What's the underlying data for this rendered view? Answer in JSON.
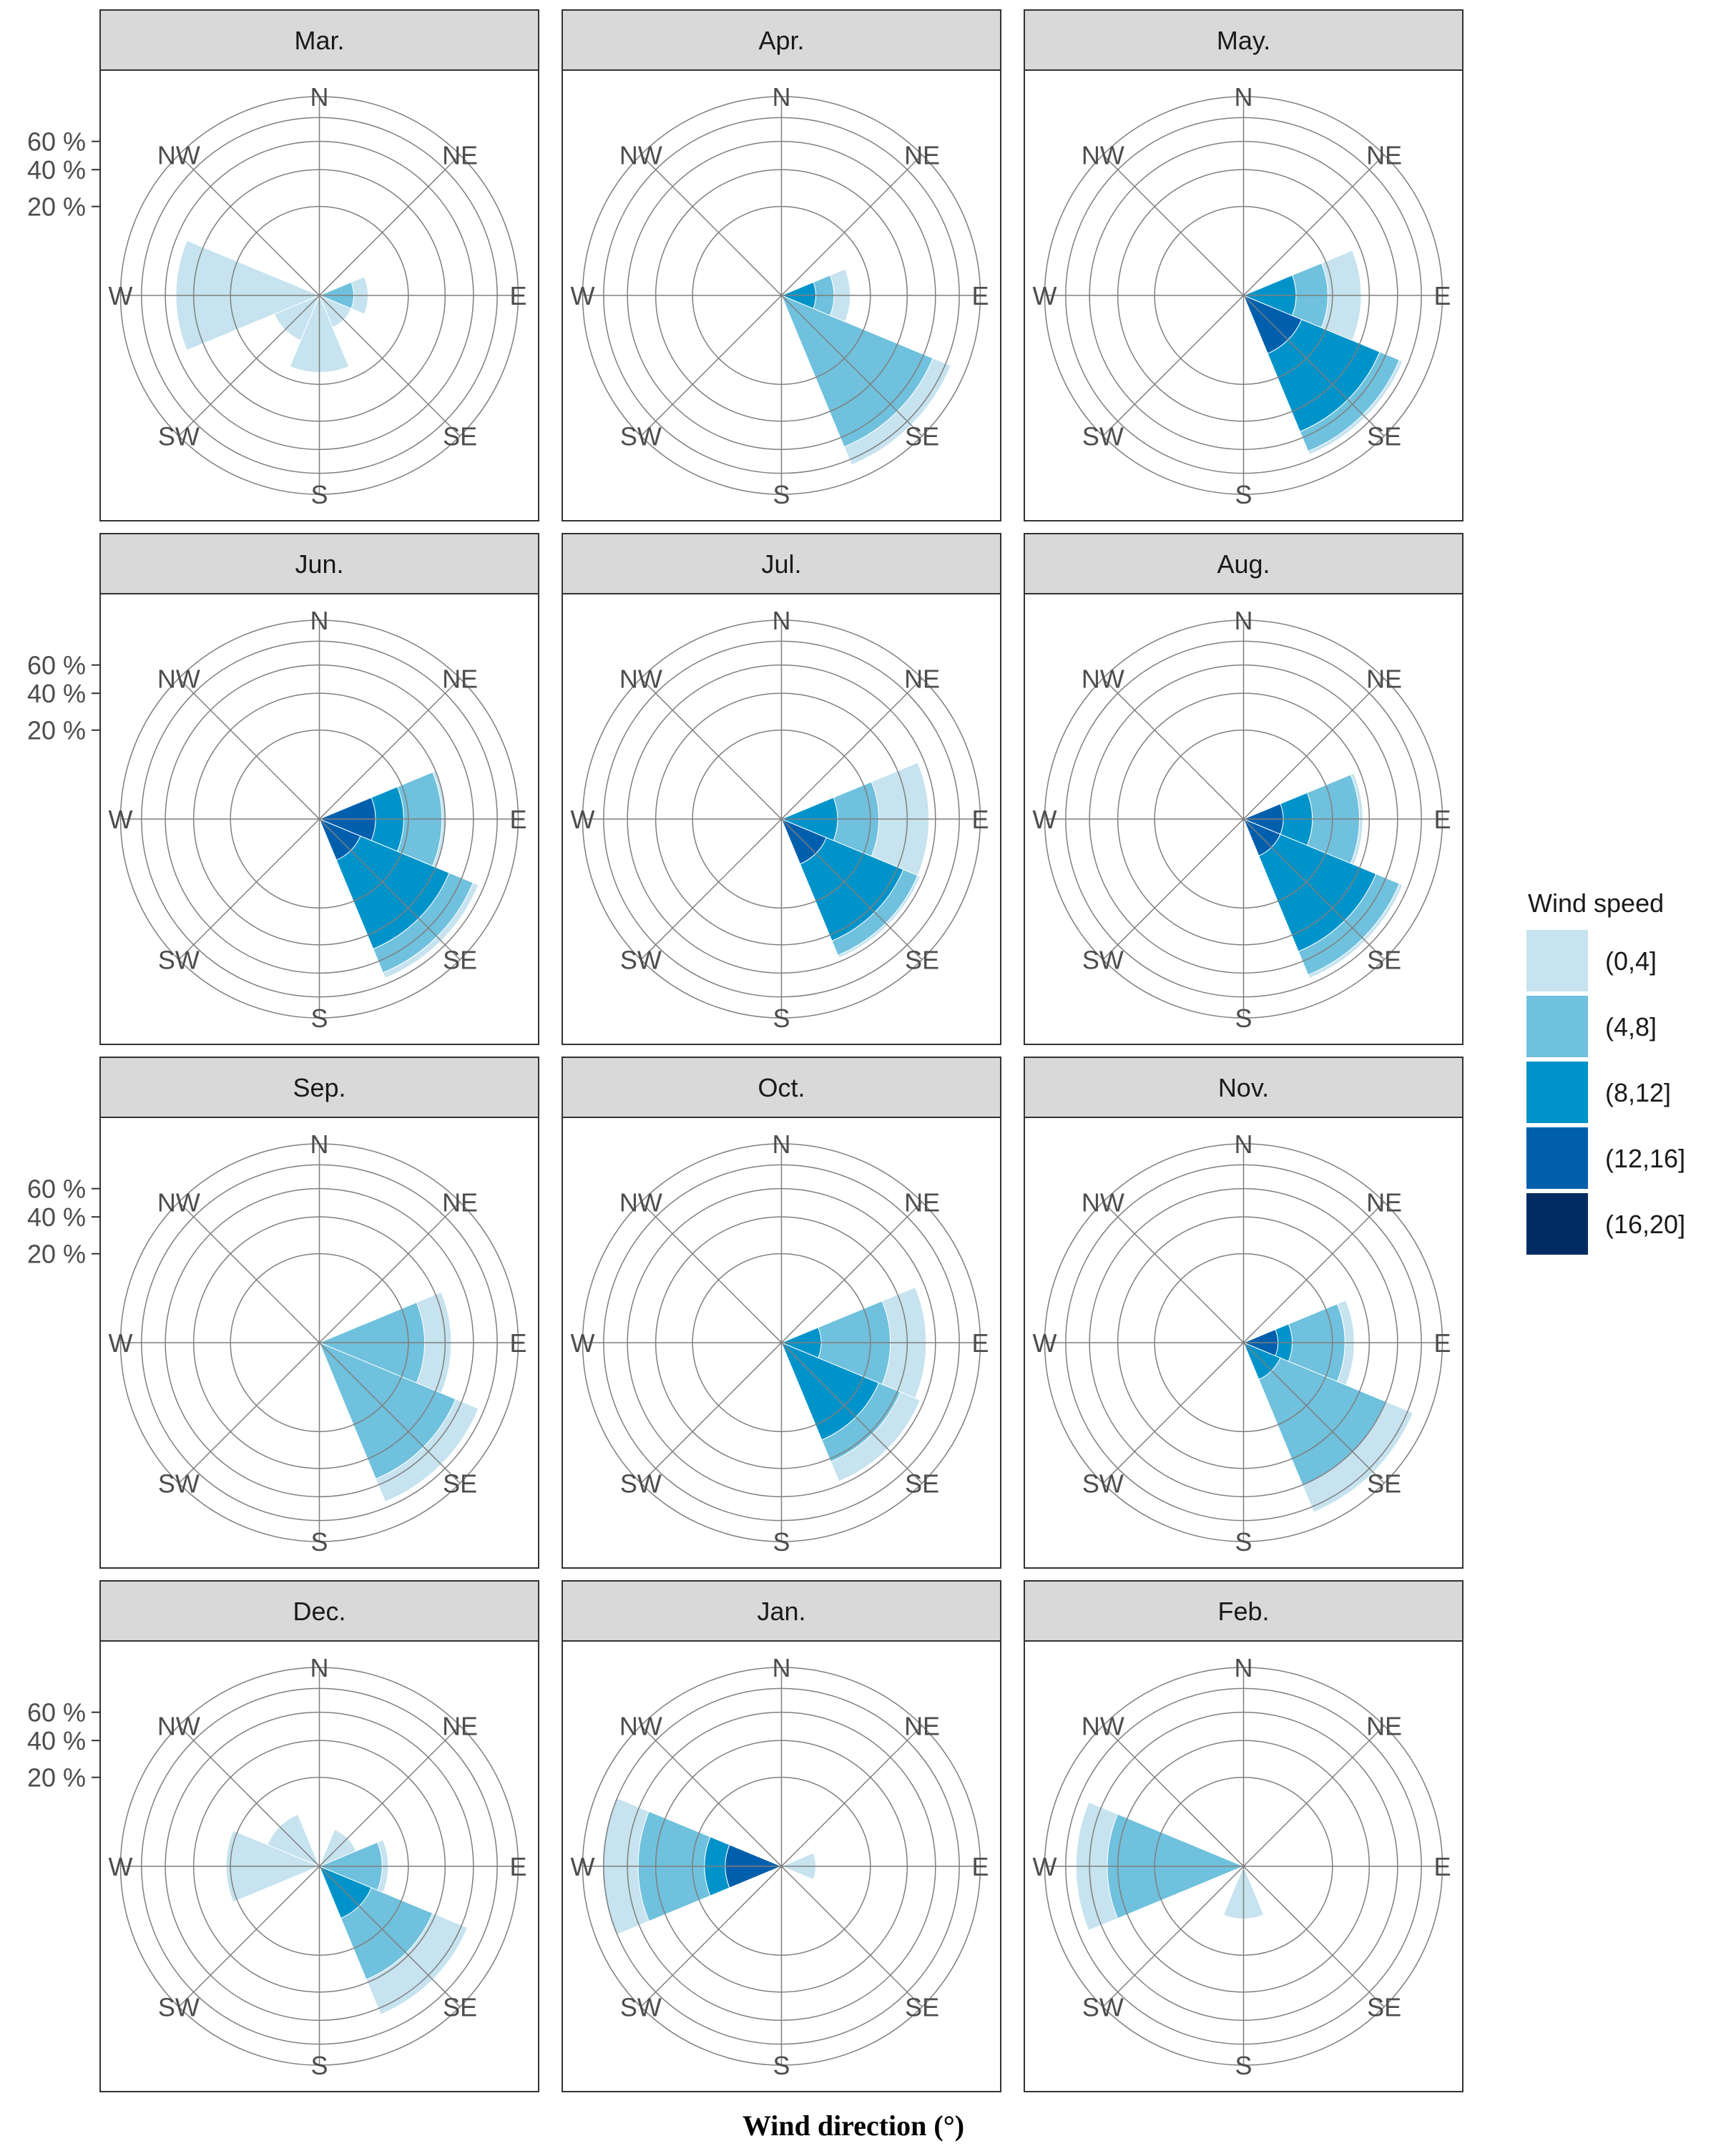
{
  "chart_data": {
    "type": "polar-bar",
    "title": "",
    "xlabel": "Wind direction (°)",
    "ylabel": "",
    "r_ticks": [
      "20 %",
      "40 %",
      "60 %"
    ],
    "r_tick_values": [
      20,
      40,
      60
    ],
    "r_max": 100,
    "directions": [
      "N",
      "NE",
      "E",
      "SE",
      "S",
      "SW",
      "W",
      "NW"
    ],
    "direction_labels": [
      "N",
      "NE",
      "E",
      "SE",
      "S",
      "SW",
      "W",
      "NW"
    ],
    "legend": {
      "title": "Wind speed",
      "placement": "right",
      "entries": [
        {
          "label": "(0,4]",
          "color": "#c6e3ef"
        },
        {
          "label": "(4,8]",
          "color": "#6fc1dd"
        },
        {
          "label": "(8,12]",
          "color": "#0093c9"
        },
        {
          "label": "(12,16]",
          "color": "#005fad"
        },
        {
          "label": "(16,20]",
          "color": "#002c63"
        }
      ]
    },
    "panels": [
      {
        "label": "Mar.",
        "wedges": [
          {
            "dir": "E",
            "center_deg": 90,
            "span_deg": 45,
            "bands": [
              [
                0,
                3
              ],
              [
                3,
                6
              ]
            ]
          },
          {
            "dir": "SE",
            "center_deg": 135,
            "span_deg": 45,
            "bands": [
              [
                0,
                3
              ]
            ]
          },
          {
            "dir": "S",
            "center_deg": 180,
            "span_deg": 45,
            "bands": [
              [
                0,
                15
              ]
            ]
          },
          {
            "dir": "SW",
            "center_deg": 225,
            "span_deg": 45,
            "bands": [
              [
                0,
                6
              ]
            ]
          },
          {
            "dir": "W",
            "center_deg": 270,
            "span_deg": 45,
            "bands": [
              [
                0,
                52
              ]
            ]
          }
        ]
      },
      {
        "label": "Apr.",
        "wedges": [
          {
            "dir": "E",
            "center_deg": 90,
            "span_deg": 45,
            "bands": [
              [
                0,
                3
              ],
              [
                3,
                7
              ],
              [
                7,
                12
              ]
            ]
          },
          {
            "dir": "SE",
            "center_deg": 135,
            "span_deg": 45,
            "bands": [
              [
                0,
                68
              ],
              [
                68,
                85
              ]
            ]
          }
        ]
      },
      {
        "label": "May.",
        "wedges": [
          {
            "dir": "E",
            "center_deg": 90,
            "span_deg": 45,
            "bands": [
              [
                0,
                7
              ],
              [
                7,
                18
              ],
              [
                18,
                35
              ]
            ]
          },
          {
            "dir": "SE",
            "center_deg": 135,
            "span_deg": 45,
            "bands": [
              [
                0,
                10
              ],
              [
                10,
                55
              ],
              [
                55,
                72
              ],
              [
                72,
                75
              ]
            ]
          }
        ]
      },
      {
        "label": "Jun.",
        "wedges": [
          {
            "dir": "E",
            "center_deg": 90,
            "span_deg": 45,
            "bands": [
              [
                0,
                8
              ],
              [
                8,
                18
              ],
              [
                18,
                38
              ],
              [
                38,
                40
              ]
            ]
          },
          {
            "dir": "SE",
            "center_deg": 135,
            "span_deg": 45,
            "bands": [
              [
                0,
                5
              ],
              [
                5,
                50
              ],
              [
                50,
                70
              ],
              [
                70,
                75
              ]
            ]
          }
        ]
      },
      {
        "label": "Jul.",
        "wedges": [
          {
            "dir": "E",
            "center_deg": 90,
            "span_deg": 45,
            "bands": [
              [
                0,
                8
              ],
              [
                8,
                24
              ],
              [
                24,
                55
              ]
            ]
          },
          {
            "dir": "SE",
            "center_deg": 135,
            "span_deg": 45,
            "bands": [
              [
                0,
                6
              ],
              [
                6,
                44
              ],
              [
                44,
                55
              ],
              [
                55,
                57
              ]
            ]
          }
        ]
      },
      {
        "label": "Aug.",
        "wedges": [
          {
            "dir": "E",
            "center_deg": 90,
            "span_deg": 45,
            "bands": [
              [
                0,
                4
              ],
              [
                4,
                12
              ],
              [
                12,
                34
              ],
              [
                34,
                36
              ]
            ]
          },
          {
            "dir": "SE",
            "center_deg": 135,
            "span_deg": 45,
            "bands": [
              [
                0,
                4
              ],
              [
                4,
                52
              ],
              [
                52,
                72
              ],
              [
                72,
                75
              ]
            ]
          }
        ]
      },
      {
        "label": "Sep.",
        "wedges": [
          {
            "dir": "E",
            "center_deg": 90,
            "span_deg": 45,
            "bands": [
              [
                0,
                28
              ],
              [
                28,
                44
              ]
            ]
          },
          {
            "dir": "SE",
            "center_deg": 135,
            "span_deg": 45,
            "bands": [
              [
                0,
                55
              ],
              [
                55,
                75
              ]
            ]
          }
        ]
      },
      {
        "label": "Oct.",
        "wedges": [
          {
            "dir": "E",
            "center_deg": 90,
            "span_deg": 45,
            "bands": [
              [
                0,
                4
              ],
              [
                4,
                30
              ],
              [
                30,
                53
              ]
            ]
          },
          {
            "dir": "SE",
            "center_deg": 135,
            "span_deg": 45,
            "bands": [
              [
                0,
                28
              ],
              [
                28,
                42
              ],
              [
                42,
                57
              ]
            ]
          }
        ]
      },
      {
        "label": "Nov.",
        "wedges": [
          {
            "dir": "E",
            "center_deg": 90,
            "span_deg": 45,
            "bands": [
              [
                0,
                3
              ],
              [
                3,
                6
              ],
              [
                6,
                26
              ],
              [
                26,
                31
              ]
            ]
          },
          {
            "dir": "SE",
            "center_deg": 135,
            "span_deg": 45,
            "bands": [
              [
                0,
                4
              ],
              [
                4,
                60
              ],
              [
                60,
                85
              ]
            ]
          }
        ]
      },
      {
        "label": "Dec.",
        "wedges": [
          {
            "dir": "NE",
            "center_deg": 45,
            "span_deg": 45,
            "bands": [
              [
                0,
                4
              ]
            ]
          },
          {
            "dir": "E",
            "center_deg": 90,
            "span_deg": 45,
            "bands": [
              [
                0,
                10
              ],
              [
                10,
                12
              ]
            ]
          },
          {
            "dir": "SE",
            "center_deg": 135,
            "span_deg": 45,
            "bands": [
              [
                0,
                8
              ],
              [
                8,
                38
              ],
              [
                38,
                65
              ]
            ]
          },
          {
            "dir": "W",
            "center_deg": 270,
            "span_deg": 45,
            "bands": [
              [
                0,
                22
              ]
            ]
          },
          {
            "dir": "NW",
            "center_deg": 315,
            "span_deg": 45,
            "bands": [
              [
                0,
                8
              ]
            ]
          }
        ]
      },
      {
        "label": "Jan.",
        "wedges": [
          {
            "dir": "E",
            "center_deg": 90,
            "span_deg": 45,
            "bands": [
              [
                0,
                3
              ]
            ]
          },
          {
            "dir": "W",
            "center_deg": 270,
            "span_deg": 45,
            "bands": [
              [
                0,
                8
              ],
              [
                8,
                15
              ],
              [
                15,
                52
              ],
              [
                52,
                81
              ]
            ]
          }
        ]
      },
      {
        "label": "Feb.",
        "wedges": [
          {
            "dir": "S",
            "center_deg": 180,
            "span_deg": 45,
            "bands": [
              [
                0,
                7
              ]
            ]
          },
          {
            "dir": "W",
            "center_deg": 270,
            "span_deg": 45,
            "bands": [
              [
                0,
                47
              ],
              [
                47,
                71
              ]
            ]
          }
        ]
      }
    ]
  }
}
